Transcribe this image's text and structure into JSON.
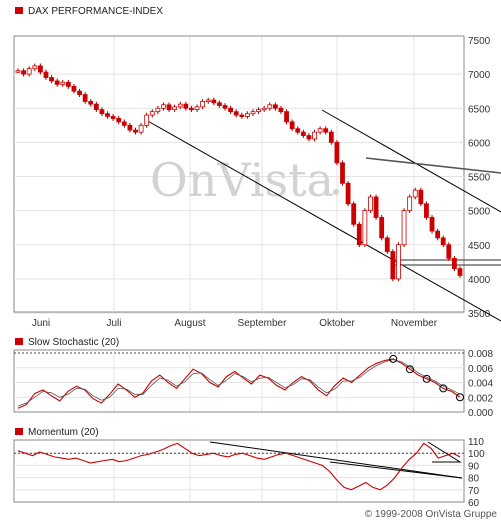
{
  "colors": {
    "accent": "#cc0000",
    "frame": "#888888",
    "grid": "#e3e3e3",
    "watermark": "#d2d2d2"
  },
  "footer": {
    "copyright": "© 1999-2008 OnVista Gruppe"
  },
  "chart_data": [
    {
      "type": "line",
      "title": "DAX PERFORMANCE-INDEX",
      "x_tick_labels": [
        "Juni",
        "Juli",
        "August",
        "September",
        "Oktober",
        "November"
      ],
      "y_tick_labels": [
        "7500",
        "7000",
        "6500",
        "6000",
        "5500",
        "5000",
        "4500",
        "4000",
        "3500"
      ],
      "ylim": [
        3500,
        7500
      ],
      "grid": true,
      "watermark": "OnVista",
      "series": [
        {
          "values": [
            7050,
            7000,
            7080,
            7120,
            7030,
            6950,
            6900,
            6850,
            6880,
            6820,
            6750,
            6700,
            6600,
            6560,
            6480,
            6420,
            6380,
            6350,
            6300,
            6250,
            6180,
            6150,
            6250,
            6400,
            6450,
            6500,
            6550,
            6480,
            6520,
            6560,
            6500,
            6480,
            6520,
            6600,
            6620,
            6580,
            6540,
            6500,
            6450,
            6400,
            6380,
            6420,
            6450,
            6480,
            6500,
            6550,
            6500,
            6450,
            6300,
            6200,
            6150,
            6100,
            6050,
            6150,
            6200,
            6150,
            6000,
            5700,
            5400,
            5100,
            4800,
            4500,
            5000,
            5200,
            4900,
            4600,
            4400,
            4000,
            4500,
            5000,
            5200,
            5300,
            5100,
            4900,
            4700,
            4600,
            4500,
            4300,
            4150,
            4050
          ]
        }
      ],
      "annotations": [
        "downtrend channel lines",
        "horizontal support lines near 4000",
        "resistance line near 5300"
      ]
    },
    {
      "type": "line",
      "title": "Slow Stochastic (20)",
      "x_tick_labels": [],
      "y_tick_labels": [
        "0.008",
        "0.006",
        "0.004",
        "0.002",
        "0.000"
      ],
      "ylim": [
        0,
        0.008
      ],
      "grid": true,
      "series": [
        {
          "values": [
            0.0005,
            0.001,
            0.0025,
            0.003,
            0.0022,
            0.0015,
            0.0028,
            0.0035,
            0.003,
            0.0018,
            0.0012,
            0.0024,
            0.0038,
            0.003,
            0.002,
            0.0026,
            0.0042,
            0.005,
            0.004,
            0.0032,
            0.0045,
            0.0058,
            0.0052,
            0.004,
            0.0034,
            0.0048,
            0.0055,
            0.0046,
            0.0038,
            0.005,
            0.0046,
            0.0036,
            0.003,
            0.004,
            0.0048,
            0.0042,
            0.003,
            0.0022,
            0.0036,
            0.0046,
            0.004,
            0.005,
            0.006,
            0.0066,
            0.007,
            0.0072,
            0.0066,
            0.0058,
            0.005,
            0.0045,
            0.004,
            0.0032,
            0.0028,
            0.002
          ]
        },
        {
          "values": [
            0.0008,
            0.0012,
            0.002,
            0.0028,
            0.0026,
            0.002,
            0.0024,
            0.0032,
            0.0031,
            0.0022,
            0.0016,
            0.002,
            0.0032,
            0.0031,
            0.0024,
            0.0024,
            0.0036,
            0.0046,
            0.0043,
            0.0035,
            0.0041,
            0.0052,
            0.0053,
            0.0044,
            0.0036,
            0.0043,
            0.0052,
            0.0048,
            0.0041,
            0.0046,
            0.0047,
            0.004,
            0.0033,
            0.0037,
            0.0045,
            0.0044,
            0.0034,
            0.0026,
            0.0031,
            0.0042,
            0.0042,
            0.0047,
            0.0056,
            0.0063,
            0.0068,
            0.0071,
            0.0068,
            0.0061,
            0.0053,
            0.0047,
            0.0042,
            0.0035,
            0.003,
            0.0024
          ]
        }
      ],
      "markers": "open circles on the falling slope"
    },
    {
      "type": "line",
      "title": "Momentum (20)",
      "x_tick_labels": [],
      "y_tick_labels": [
        "110",
        "100",
        "90",
        "80",
        "70",
        "60"
      ],
      "ylim": [
        60,
        110
      ],
      "grid": true,
      "reference_line": 100,
      "series": [
        {
          "values": [
            102,
            100,
            98,
            101,
            99,
            97,
            96,
            95,
            96,
            94,
            92,
            93,
            94,
            95,
            93,
            94,
            96,
            98,
            99,
            101,
            103,
            106,
            108,
            104,
            100,
            98,
            99,
            100,
            98,
            97,
            99,
            100,
            98,
            96,
            95,
            97,
            99,
            100,
            98,
            96,
            94,
            92,
            90,
            85,
            78,
            72,
            70,
            73,
            76,
            72,
            70,
            74,
            80,
            88,
            95,
            100,
            108,
            104,
            96,
            98,
            100,
            97
          ]
        }
      ],
      "annotations": [
        "long falling trendline",
        "triangle near the end"
      ]
    }
  ]
}
